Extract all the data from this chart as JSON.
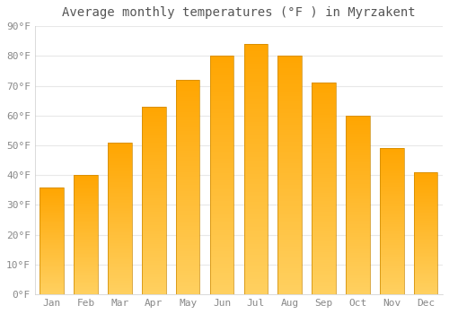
{
  "title": "Average monthly temperatures (°F ) in Myrzakent",
  "months": [
    "Jan",
    "Feb",
    "Mar",
    "Apr",
    "May",
    "Jun",
    "Jul",
    "Aug",
    "Sep",
    "Oct",
    "Nov",
    "Dec"
  ],
  "values": [
    36,
    40,
    51,
    63,
    72,
    80,
    84,
    80,
    71,
    60,
    49,
    41
  ],
  "bar_color_main": "#FFA500",
  "bar_color_light": "#FFD060",
  "ylim": [
    0,
    90
  ],
  "yticks": [
    0,
    10,
    20,
    30,
    40,
    50,
    60,
    70,
    80,
    90
  ],
  "ytick_labels": [
    "0°F",
    "10°F",
    "20°F",
    "30°F",
    "40°F",
    "50°F",
    "60°F",
    "70°F",
    "80°F",
    "90°F"
  ],
  "background_color": "#FFFFFF",
  "grid_color": "#E8E8E8",
  "title_fontsize": 10,
  "tick_fontsize": 8,
  "tick_color": "#888888",
  "title_color": "#555555"
}
